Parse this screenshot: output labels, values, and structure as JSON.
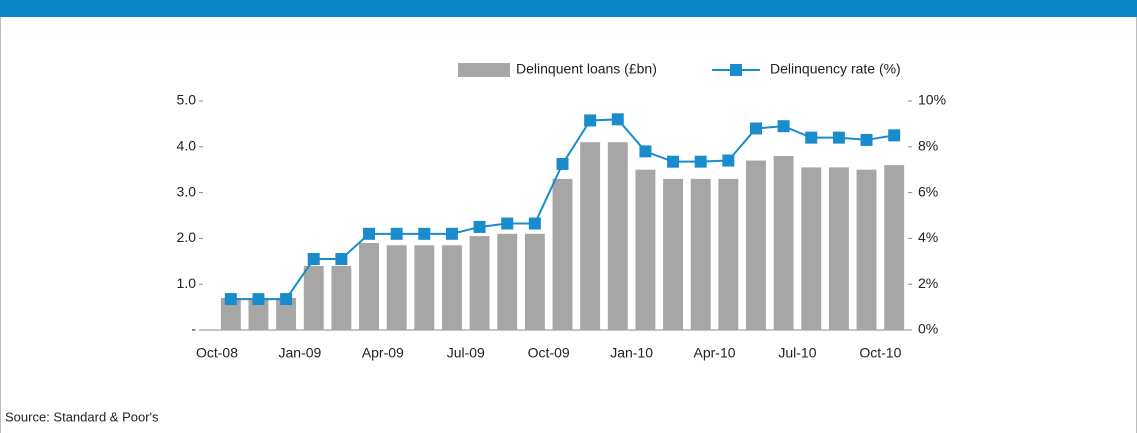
{
  "chart_data": {
    "type": "combo",
    "categories": [
      "Oct-08",
      null,
      null,
      "Jan-09",
      null,
      null,
      "Apr-09",
      null,
      null,
      "Jul-09",
      null,
      null,
      "Oct-09",
      null,
      null,
      "Jan-10",
      null,
      null,
      "Apr-10",
      null,
      null,
      "Jul-10",
      null,
      null,
      "Oct-10"
    ],
    "series": [
      {
        "name": "Delinquent loans (£bn)",
        "type": "bar",
        "color": "#a6a6a6",
        "values": [
          0.7,
          0.7,
          0.7,
          1.4,
          1.4,
          1.9,
          1.85,
          1.85,
          1.85,
          2.05,
          2.1,
          2.1,
          3.3,
          4.1,
          4.1,
          3.5,
          3.3,
          3.3,
          3.3,
          3.7,
          3.8,
          3.55,
          3.55,
          3.5,
          3.6
        ]
      },
      {
        "name": "Delinquency rate (%)",
        "type": "line",
        "axis": "y2",
        "color": "#1a8ccc",
        "values": [
          1.35,
          1.35,
          1.35,
          3.1,
          3.1,
          4.2,
          4.2,
          4.2,
          4.2,
          4.5,
          4.65,
          4.65,
          7.25,
          9.15,
          9.2,
          7.8,
          7.35,
          7.35,
          7.4,
          8.8,
          8.9,
          8.4,
          8.4,
          8.3,
          8.5
        ]
      }
    ],
    "ylim": [
      0,
      5
    ],
    "yticks": [
      {
        "value": 0,
        "label": "-"
      },
      {
        "value": 1,
        "label": "1.0"
      },
      {
        "value": 2,
        "label": "2.0"
      },
      {
        "value": 3,
        "label": "3.0"
      },
      {
        "value": 4,
        "label": "4.0"
      },
      {
        "value": 5,
        "label": "5.0"
      }
    ],
    "y2lim": [
      0,
      10
    ],
    "y2ticks": [
      {
        "value": 0,
        "label": "0%"
      },
      {
        "value": 2,
        "label": "2%"
      },
      {
        "value": 4,
        "label": "4%"
      },
      {
        "value": 6,
        "label": "6%"
      },
      {
        "value": 8,
        "label": "8%"
      },
      {
        "value": 10,
        "label": "10%"
      }
    ],
    "legend": "top-right"
  },
  "source": "Source: Standard & Poor's"
}
